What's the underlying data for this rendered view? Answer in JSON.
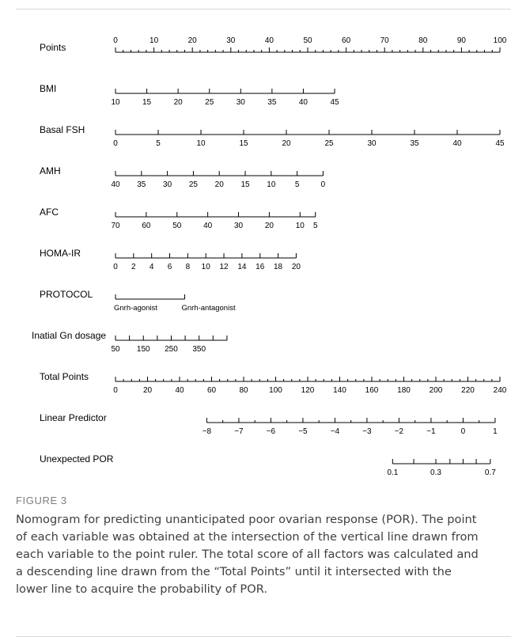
{
  "figure": {
    "label": "FIGURE 3",
    "caption": "Nomogram for predicting unanticipated poor ovarian response (POR). The point of each variable was obtained at the intersection of the vertical line drawn from each variable to the point ruler. The total score of all factors was calculated and a descending line drawn from the “Total Points” until it intersected with the lower line to acquire the probability of POR."
  },
  "chart_data": {
    "type": "nomogram",
    "title": "",
    "rows": [
      {
        "name": "Points",
        "range": [
          0,
          100
        ],
        "ticks": [
          0,
          10,
          20,
          30,
          40,
          50,
          60,
          70,
          80,
          90,
          100
        ],
        "minor_step": 2,
        "labels_above": true
      },
      {
        "name": "BMI",
        "range": [
          10,
          45
        ],
        "ticks": [
          10,
          15,
          20,
          25,
          30,
          35,
          40,
          45
        ],
        "points_range": [
          0,
          57
        ]
      },
      {
        "name": "Basal FSH",
        "range": [
          0,
          45
        ],
        "ticks": [
          0,
          5,
          10,
          15,
          20,
          25,
          30,
          35,
          40,
          45
        ],
        "points_range": [
          0,
          100
        ]
      },
      {
        "name": "AMH",
        "range": [
          40,
          0
        ],
        "ticks": [
          40,
          35,
          30,
          25,
          20,
          15,
          10,
          5,
          0
        ],
        "points_range": [
          0,
          54
        ]
      },
      {
        "name": "AFC",
        "range": [
          70,
          5
        ],
        "ticks": [
          70,
          60,
          50,
          40,
          30,
          20,
          10,
          5
        ],
        "points_range": [
          0,
          52
        ]
      },
      {
        "name": "HOMA-IR",
        "range": [
          0,
          20
        ],
        "ticks": [
          0,
          2,
          4,
          6,
          8,
          10,
          12,
          14,
          16,
          18,
          20
        ],
        "points_range": [
          0,
          47
        ]
      },
      {
        "name": "PROTOCOL",
        "categories": [
          "Gnrh-agonist",
          "Gnrh-antagonist"
        ],
        "points": [
          0,
          18
        ]
      },
      {
        "name": "Inatial Gn dosage",
        "range": [
          50,
          450
        ],
        "ticks": [
          50,
          150,
          250,
          350
        ],
        "minor_ticks": [
          50,
          100,
          150,
          200,
          250,
          300,
          350,
          400,
          450
        ],
        "points_range": [
          0,
          29
        ]
      },
      {
        "name": "Total Points",
        "range": [
          0,
          240
        ],
        "ticks": [
          0,
          20,
          40,
          60,
          80,
          100,
          120,
          140,
          160,
          180,
          200,
          220,
          240
        ],
        "minor_step": 5
      },
      {
        "name": "Linear Predictor",
        "range": [
          -8,
          1
        ],
        "ticks": [
          -8,
          -7,
          -6,
          -5,
          -4,
          -3,
          -2,
          -1,
          0,
          1
        ],
        "total_points_range": [
          57,
          237
        ]
      },
      {
        "name": "Unexpected POR",
        "ticks": [
          0.1,
          0.3,
          0.7
        ],
        "minor_ticks": [
          0.1,
          0.2,
          0.3,
          0.4,
          0.5,
          0.6,
          0.7
        ],
        "linear_predictor": [
          -2.2,
          -1.54,
          -0.85,
          -0.41,
          0,
          0.41,
          0.85
        ]
      }
    ]
  }
}
